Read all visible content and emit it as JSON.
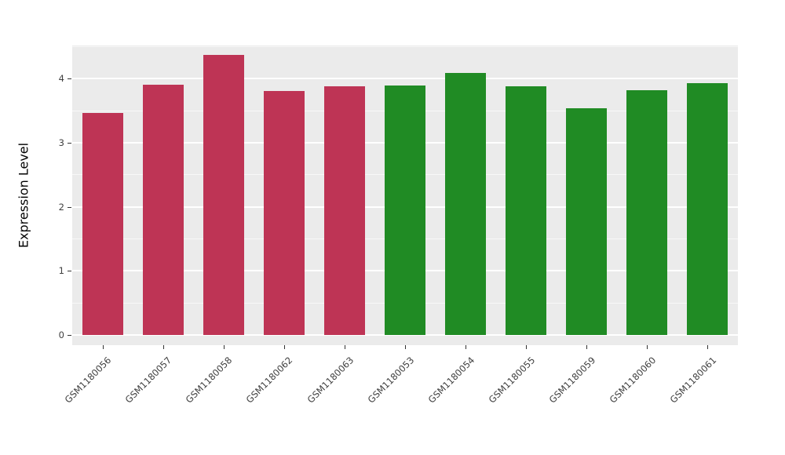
{
  "figure": {
    "kind": "grouped bar chart of gene expression per GEO sample"
  },
  "chart_data": {
    "type": "bar",
    "title": "",
    "xlabel": "",
    "ylabel": "Expression Level",
    "categories": [
      "GSM1180056",
      "GSM1180057",
      "GSM1180058",
      "GSM1180062",
      "GSM1180063",
      "GSM1180053",
      "GSM1180054",
      "GSM1180055",
      "GSM1180059",
      "GSM1180060",
      "GSM1180061"
    ],
    "values": [
      3.47,
      3.91,
      4.37,
      3.81,
      3.88,
      3.9,
      4.09,
      3.88,
      3.54,
      3.82,
      3.93
    ],
    "groups": [
      "group1",
      "group1",
      "group1",
      "group1",
      "group1",
      "group2",
      "group2",
      "group2",
      "group2",
      "group2",
      "group2"
    ],
    "group_colors": {
      "group1": "#BE3455",
      "group2": "#208B24"
    },
    "yticks": [
      0,
      1,
      2,
      3,
      4
    ],
    "ylim": [
      0,
      4.4
    ],
    "grid": true,
    "legend": false,
    "x_tick_rotation_deg": 45,
    "panel_background": "#EBEBEB",
    "gridline_color": "#FFFFFF",
    "tick_text_color": "#404040"
  }
}
